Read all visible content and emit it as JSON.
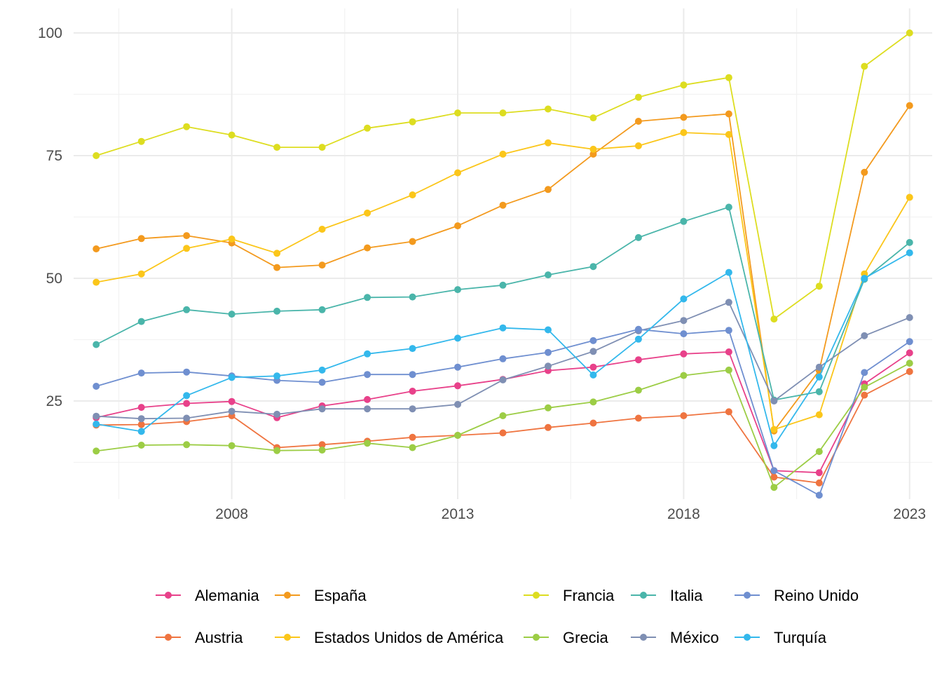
{
  "chart_data": {
    "type": "line",
    "title": "",
    "xlabel": "",
    "ylabel": "",
    "xlim": [
      2004.5,
      2023.5
    ],
    "ylim": [
      5,
      105
    ],
    "x_ticks": [
      2008,
      2013,
      2018,
      2023
    ],
    "y_ticks": [
      25,
      50,
      75,
      100
    ],
    "grid": true,
    "legend_position": "bottom",
    "x": [
      2005,
      2006,
      2007,
      2008,
      2009,
      2010,
      2011,
      2012,
      2013,
      2014,
      2015,
      2016,
      2017,
      2018,
      2019,
      2020,
      2021,
      2022,
      2023
    ],
    "series": [
      {
        "name": "Alemania",
        "color": "#e8418a",
        "values": [
          21.6,
          23.7,
          24.5,
          24.9,
          21.6,
          24.0,
          25.3,
          27.0,
          28.1,
          29.4,
          31.2,
          31.9,
          33.4,
          34.6,
          35.0,
          10.8,
          10.4,
          28.5,
          34.8
        ]
      },
      {
        "name": "Austria",
        "color": "#ef7440",
        "values": [
          20.1,
          20.2,
          20.8,
          22.0,
          15.5,
          16.1,
          16.8,
          17.6,
          18.0,
          18.5,
          19.6,
          20.5,
          21.5,
          22.0,
          22.8,
          9.5,
          8.3,
          26.2,
          31.0
        ]
      },
      {
        "name": "España",
        "color": "#f39a1e",
        "values": [
          56.0,
          58.1,
          58.7,
          57.2,
          52.2,
          52.7,
          56.2,
          57.5,
          60.7,
          64.9,
          68.1,
          75.3,
          82.0,
          82.8,
          83.5,
          18.9,
          31.2,
          71.6,
          85.2
        ]
      },
      {
        "name": "Estados Unidos de América",
        "color": "#fbc61a",
        "values": [
          49.2,
          50.9,
          56.1,
          58.0,
          55.1,
          60.0,
          63.3,
          67.0,
          71.5,
          75.3,
          77.6,
          76.3,
          77.0,
          79.7,
          79.3,
          19.2,
          22.2,
          50.9,
          66.5
        ]
      },
      {
        "name": "Francia",
        "color": "#dddd20",
        "values": [
          75.0,
          77.9,
          80.9,
          79.2,
          76.7,
          76.7,
          80.6,
          81.9,
          83.7,
          83.7,
          84.5,
          82.7,
          86.9,
          89.4,
          90.9,
          41.7,
          48.4,
          93.2,
          100.0
        ]
      },
      {
        "name": "Grecia",
        "color": "#9ccd45",
        "values": [
          14.8,
          16.0,
          16.1,
          15.9,
          14.9,
          15.0,
          16.4,
          15.5,
          18.0,
          22.0,
          23.6,
          24.8,
          27.2,
          30.2,
          31.3,
          7.4,
          14.7,
          27.8,
          32.7
        ]
      },
      {
        "name": "Italia",
        "color": "#4ab5aa",
        "values": [
          36.5,
          41.2,
          43.6,
          42.7,
          43.3,
          43.6,
          46.1,
          46.2,
          47.7,
          48.6,
          50.7,
          52.4,
          58.3,
          61.6,
          64.5,
          25.2,
          26.9,
          49.8,
          57.3
        ]
      },
      {
        "name": "México",
        "color": "#7f8fb3",
        "values": [
          21.9,
          21.4,
          21.5,
          22.9,
          22.3,
          23.4,
          23.4,
          23.4,
          24.3,
          29.3,
          32.1,
          35.1,
          39.3,
          41.4,
          45.1,
          25.0,
          31.9,
          38.3,
          42.0
        ]
      },
      {
        "name": "Reino Unido",
        "color": "#6f8fd0",
        "values": [
          28.0,
          30.7,
          30.9,
          30.1,
          29.2,
          28.8,
          30.4,
          30.4,
          31.9,
          33.6,
          34.9,
          37.3,
          39.6,
          38.7,
          39.4,
          10.8,
          5.8,
          30.8,
          37.1
        ]
      },
      {
        "name": "Turquía",
        "color": "#33b8ec",
        "values": [
          20.3,
          18.8,
          26.1,
          29.8,
          30.1,
          31.3,
          34.6,
          35.7,
          37.8,
          39.9,
          39.5,
          30.3,
          37.6,
          45.8,
          51.2,
          15.9,
          29.9,
          50.0,
          55.2
        ]
      }
    ]
  }
}
